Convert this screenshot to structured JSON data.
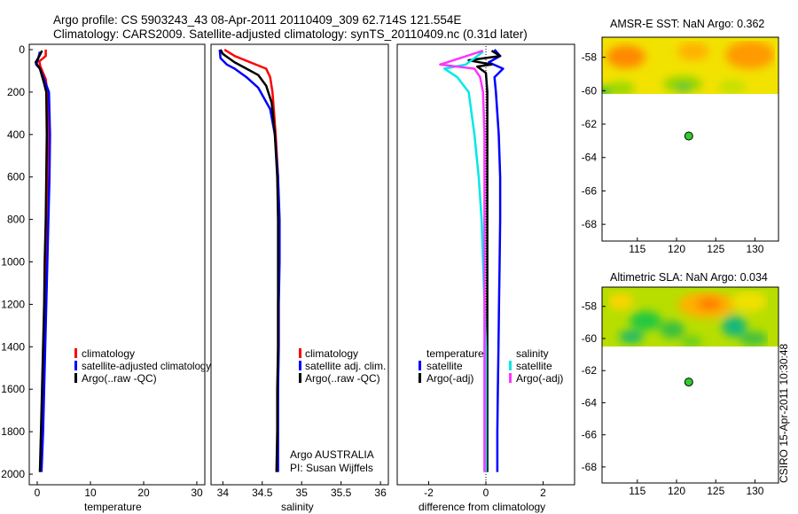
{
  "header": {
    "line1": "Argo profile: CS 5903243_43 08-Apr-2011 20110409_309 62.714S 121.554E",
    "line2": "Climatology: CARS2009. Satellite-adjusted climatology: synTS_20110409.nc (0.31d later)"
  },
  "side_stamp": "CSIRO 15-Apr-2011 10:30:48",
  "chart_data": [
    {
      "id": "temperature",
      "type": "line",
      "xlabel": "temperature",
      "ylabel": "",
      "xlim": [
        -1.5,
        31.5
      ],
      "ylim": [
        2050,
        -25
      ],
      "x_ticks": [
        0,
        10,
        20,
        30
      ],
      "y_ticks": [
        0,
        200,
        400,
        600,
        800,
        1000,
        1200,
        1400,
        1600,
        1800,
        2000
      ],
      "legend": [
        "climatology",
        "satellite-adjusted climatology",
        "Argo(..raw -QC)"
      ],
      "series": [
        {
          "name": "climatology",
          "color": "#ff0000",
          "points": [
            [
              1.6,
              0
            ],
            [
              1.6,
              30
            ],
            [
              0.4,
              55
            ],
            [
              0.6,
              80
            ],
            [
              1.6,
              140
            ],
            [
              1.9,
              200
            ],
            [
              2.0,
              400
            ],
            [
              1.9,
              600
            ],
            [
              1.8,
              800
            ],
            [
              1.6,
              1000
            ],
            [
              1.4,
              1200
            ],
            [
              1.2,
              1400
            ],
            [
              1.0,
              1600
            ],
            [
              0.8,
              1800
            ],
            [
              0.6,
              1990
            ]
          ]
        },
        {
          "name": "satellite-adjusted climatology",
          "color": "#0000ff",
          "points": [
            [
              0.5,
              10
            ],
            [
              0.1,
              50
            ],
            [
              -0.2,
              70
            ],
            [
              0.5,
              90
            ],
            [
              1.6,
              160
            ],
            [
              2.2,
              200
            ],
            [
              2.4,
              400
            ],
            [
              2.3,
              600
            ],
            [
              2.1,
              800
            ],
            [
              1.9,
              1000
            ],
            [
              1.7,
              1200
            ],
            [
              1.5,
              1400
            ],
            [
              1.3,
              1600
            ],
            [
              1.1,
              1800
            ],
            [
              0.8,
              1990
            ]
          ]
        },
        {
          "name": "Argo(..raw -QC)",
          "color": "#000000",
          "points": [
            [
              0.9,
              5
            ],
            [
              0.4,
              30
            ],
            [
              -0.3,
              60
            ],
            [
              0.5,
              90
            ],
            [
              1.3,
              160
            ],
            [
              1.7,
              200
            ],
            [
              1.8,
              400
            ],
            [
              1.7,
              600
            ],
            [
              1.6,
              800
            ],
            [
              1.4,
              1000
            ],
            [
              1.3,
              1200
            ],
            [
              1.1,
              1400
            ],
            [
              0.9,
              1600
            ],
            [
              0.7,
              1800
            ],
            [
              0.5,
              1990
            ]
          ]
        }
      ]
    },
    {
      "id": "salinity",
      "type": "line",
      "xlabel": "salinity",
      "ylabel": "",
      "xlim": [
        33.85,
        36.1
      ],
      "ylim": [
        2050,
        -25
      ],
      "x_ticks": [
        34,
        34.5,
        35,
        35.5,
        36
      ],
      "x_tick_labels": [
        "34",
        "34.5",
        "35",
        "35.5",
        "36"
      ],
      "legend": [
        "climatology",
        "satellite adj. clim.",
        "Argo(..raw -QC)"
      ],
      "annotation": [
        "Argo AUSTRALIA",
        "PI: Susan Wijffels"
      ],
      "series": [
        {
          "name": "climatology",
          "color": "#ff0000",
          "points": [
            [
              34.02,
              0
            ],
            [
              34.15,
              30
            ],
            [
              34.35,
              60
            ],
            [
              34.55,
              90
            ],
            [
              34.6,
              130
            ],
            [
              34.63,
              200
            ],
            [
              34.67,
              400
            ],
            [
              34.7,
              600
            ],
            [
              34.71,
              800
            ],
            [
              34.71,
              1000
            ],
            [
              34.7,
              1200
            ],
            [
              34.7,
              1400
            ],
            [
              34.7,
              1600
            ],
            [
              34.69,
              1800
            ],
            [
              34.69,
              1990
            ]
          ]
        },
        {
          "name": "satellite adj. clim.",
          "color": "#0000ff",
          "points": [
            [
              33.96,
              0
            ],
            [
              33.97,
              40
            ],
            [
              34.05,
              70
            ],
            [
              34.15,
              90
            ],
            [
              34.3,
              130
            ],
            [
              34.45,
              180
            ],
            [
              34.6,
              280
            ],
            [
              34.66,
              400
            ],
            [
              34.7,
              600
            ],
            [
              34.72,
              800
            ],
            [
              34.72,
              1000
            ],
            [
              34.71,
              1200
            ],
            [
              34.71,
              1400
            ],
            [
              34.7,
              1600
            ],
            [
              34.7,
              1800
            ],
            [
              34.7,
              1990
            ]
          ]
        },
        {
          "name": "Argo(..raw -QC)",
          "color": "#000000",
          "points": [
            [
              33.97,
              0
            ],
            [
              34.0,
              20
            ],
            [
              34.15,
              60
            ],
            [
              34.25,
              80
            ],
            [
              34.45,
              120
            ],
            [
              34.55,
              170
            ],
            [
              34.62,
              250
            ],
            [
              34.66,
              400
            ],
            [
              34.69,
              600
            ],
            [
              34.7,
              800
            ],
            [
              34.7,
              1000
            ],
            [
              34.7,
              1200
            ],
            [
              34.7,
              1400
            ],
            [
              34.69,
              1600
            ],
            [
              34.69,
              1800
            ],
            [
              34.68,
              1990
            ]
          ]
        }
      ]
    },
    {
      "id": "difference",
      "type": "line",
      "xlabel": "difference from climatology",
      "ylabel": "",
      "xlim": [
        -3.1,
        3.1
      ],
      "ylim": [
        2050,
        -25
      ],
      "x_ticks": [
        -2,
        0,
        2
      ],
      "legend_groups": [
        {
          "title": "temperature",
          "items": [
            {
              "label": "satellite",
              "color": "#0000ff"
            },
            {
              "label": "Argo(-adj)",
              "color": "#000000"
            }
          ]
        },
        {
          "title": "salinity",
          "items": [
            {
              "label": "satellite",
              "color": "#00e8e8"
            },
            {
              "label": "Argo(-adj)",
              "color": "#ff33ff"
            }
          ]
        }
      ],
      "series": [
        {
          "name": "temperature satellite",
          "color": "#0000ff",
          "points": [
            [
              0.3,
              0
            ],
            [
              0.5,
              30
            ],
            [
              0.1,
              60
            ],
            [
              0.6,
              90
            ],
            [
              0.3,
              130
            ],
            [
              0.35,
              200
            ],
            [
              0.45,
              400
            ],
            [
              0.5,
              600
            ],
            [
              0.5,
              800
            ],
            [
              0.48,
              1000
            ],
            [
              0.46,
              1200
            ],
            [
              0.44,
              1400
            ],
            [
              0.42,
              1600
            ],
            [
              0.4,
              1800
            ],
            [
              0.4,
              1990
            ]
          ]
        },
        {
          "name": "temperature Argo(-adj)",
          "color": "#000000",
          "points": [
            [
              0.2,
              5
            ],
            [
              0.5,
              30
            ],
            [
              -0.6,
              50
            ],
            [
              0.2,
              70
            ],
            [
              -0.3,
              80
            ],
            [
              0.0,
              110
            ],
            [
              0.05,
              200
            ],
            [
              0.05,
              400
            ],
            [
              0.05,
              1000
            ],
            [
              0.05,
              1990
            ]
          ]
        },
        {
          "name": "salinity satellite",
          "color": "#00e8e8",
          "points": [
            [
              -0.1,
              10
            ],
            [
              -0.7,
              70
            ],
            [
              -1.45,
              90
            ],
            [
              -1.0,
              130
            ],
            [
              -0.6,
              200
            ],
            [
              -0.4,
              400
            ],
            [
              -0.25,
              600
            ],
            [
              -0.15,
              800
            ],
            [
              -0.1,
              1000
            ],
            [
              -0.05,
              1200
            ],
            [
              0.0,
              1400
            ],
            [
              0.0,
              1990
            ]
          ]
        },
        {
          "name": "salinity Argo(-adj)",
          "color": "#ff33ff",
          "points": [
            [
              -0.1,
              5
            ],
            [
              -0.9,
              40
            ],
            [
              -1.6,
              70
            ],
            [
              -0.4,
              90
            ],
            [
              -0.2,
              130
            ],
            [
              -0.1,
              200
            ],
            [
              -0.05,
              400
            ],
            [
              -0.05,
              1000
            ],
            [
              -0.05,
              1990
            ]
          ]
        }
      ]
    },
    {
      "id": "sst_map",
      "type": "heatmap",
      "title": "AMSR-E SST: NaN Argo: 0.362",
      "xlim": [
        110.5,
        133
      ],
      "ylim": [
        -69,
        -56.8
      ],
      "x_ticks": [
        115,
        120,
        125,
        130
      ],
      "y_ticks": [
        -58,
        -60,
        -62,
        -64,
        -66,
        -68
      ],
      "data_lat_range": [
        -60.2,
        -56.8
      ],
      "profile_point": {
        "lon": 121.554,
        "lat": -62.714
      }
    },
    {
      "id": "sla_map",
      "type": "heatmap",
      "title": "Altimetric SLA: NaN Argo: 0.034",
      "xlim": [
        110.5,
        133
      ],
      "ylim": [
        -69,
        -56.8
      ],
      "x_ticks": [
        115,
        120,
        125,
        130
      ],
      "y_ticks": [
        -58,
        -60,
        -62,
        -64,
        -66,
        -68
      ],
      "data_lat_range": [
        -60.2,
        -56.8
      ],
      "profile_point": {
        "lon": 121.554,
        "lat": -62.714
      }
    }
  ]
}
